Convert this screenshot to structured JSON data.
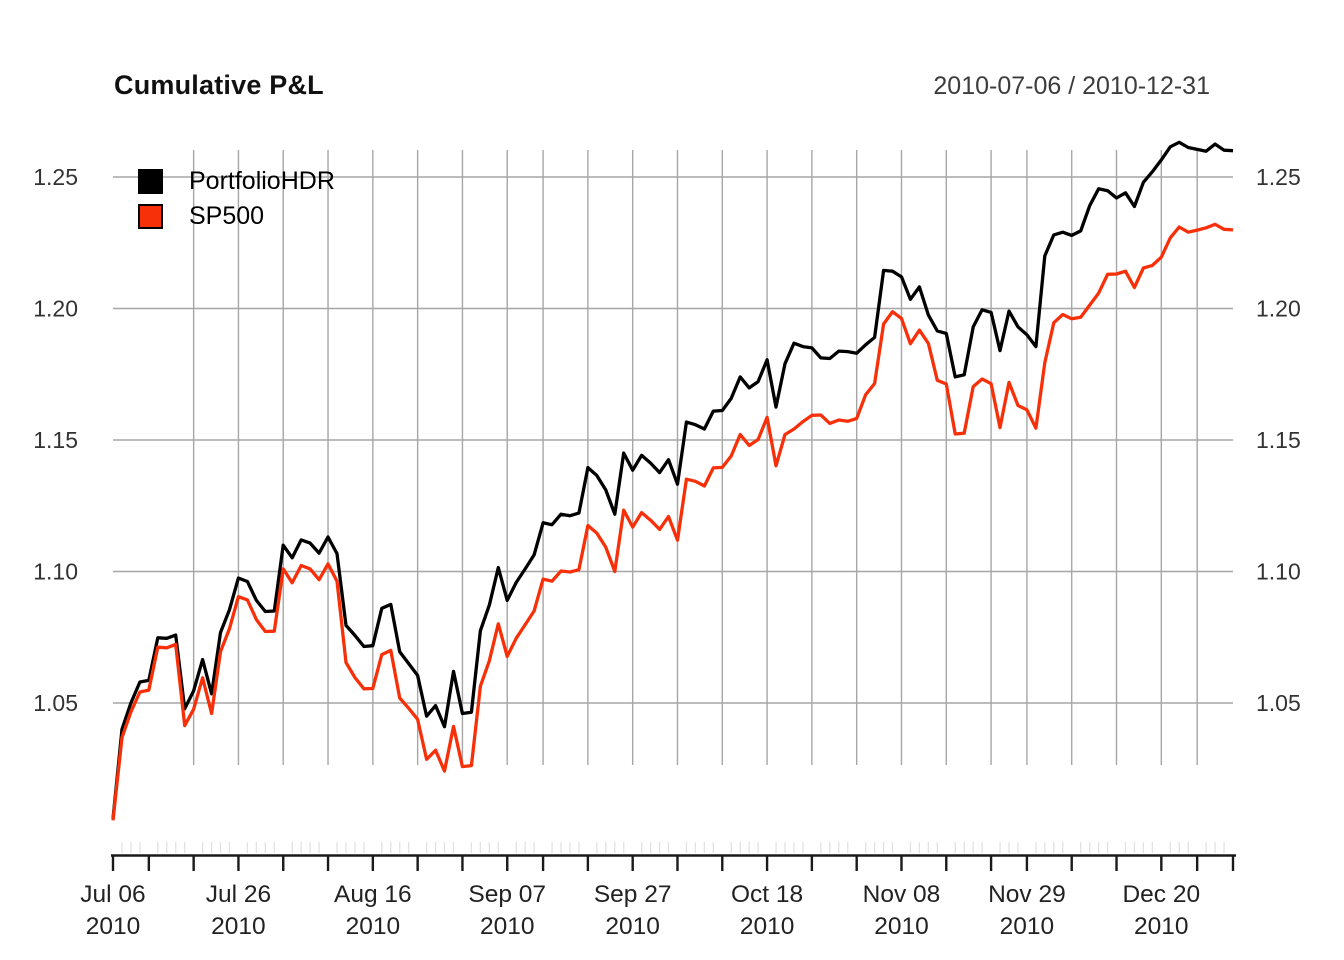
{
  "header": {
    "title": "Cumulative P&L",
    "date_range": "2010-07-06 / 2010-12-31"
  },
  "legend": [
    {
      "label": "PortfolioHDR",
      "color": "#000000"
    },
    {
      "label": "SP500",
      "color": "#F83009"
    }
  ],
  "colors": {
    "background": "#ffffff",
    "gridline": "#A6A6A6",
    "minor_tick": "#E2E2E2",
    "axis": "#1a1a1a",
    "tick_label": "#333333",
    "series_portfolio": "#000000",
    "series_sp500": "#F83009"
  },
  "chart_data": {
    "type": "line",
    "title": "Cumulative P&L",
    "subtitle_right": "2010-07-06 / 2010-12-31",
    "xlabel": "",
    "ylabel": "",
    "grid": true,
    "legend_position": "top-left",
    "ylim": [
      1.0,
      1.268
    ],
    "yticks": [
      1.05,
      1.1,
      1.15,
      1.2,
      1.25
    ],
    "ytick_labels": [
      "1.05",
      "1.10",
      "1.15",
      "1.20",
      "1.25"
    ],
    "x": [
      "2010-07-06",
      "2010-07-07",
      "2010-07-08",
      "2010-07-09",
      "2010-07-12",
      "2010-07-13",
      "2010-07-14",
      "2010-07-15",
      "2010-07-16",
      "2010-07-19",
      "2010-07-20",
      "2010-07-21",
      "2010-07-22",
      "2010-07-23",
      "2010-07-26",
      "2010-07-27",
      "2010-07-28",
      "2010-07-29",
      "2010-07-30",
      "2010-08-02",
      "2010-08-03",
      "2010-08-04",
      "2010-08-05",
      "2010-08-06",
      "2010-08-09",
      "2010-08-10",
      "2010-08-11",
      "2010-08-12",
      "2010-08-13",
      "2010-08-16",
      "2010-08-17",
      "2010-08-18",
      "2010-08-19",
      "2010-08-20",
      "2010-08-23",
      "2010-08-24",
      "2010-08-25",
      "2010-08-26",
      "2010-08-27",
      "2010-08-30",
      "2010-08-31",
      "2010-09-01",
      "2010-09-02",
      "2010-09-03",
      "2010-09-07",
      "2010-09-08",
      "2010-09-09",
      "2010-09-10",
      "2010-09-13",
      "2010-09-14",
      "2010-09-15",
      "2010-09-16",
      "2010-09-17",
      "2010-09-20",
      "2010-09-21",
      "2010-09-22",
      "2010-09-23",
      "2010-09-24",
      "2010-09-27",
      "2010-09-28",
      "2010-09-29",
      "2010-09-30",
      "2010-10-01",
      "2010-10-04",
      "2010-10-05",
      "2010-10-06",
      "2010-10-07",
      "2010-10-08",
      "2010-10-11",
      "2010-10-12",
      "2010-10-13",
      "2010-10-14",
      "2010-10-15",
      "2010-10-18",
      "2010-10-19",
      "2010-10-20",
      "2010-10-21",
      "2010-10-22",
      "2010-10-25",
      "2010-10-26",
      "2010-10-27",
      "2010-10-28",
      "2010-10-29",
      "2010-11-01",
      "2010-11-02",
      "2010-11-03",
      "2010-11-04",
      "2010-11-05",
      "2010-11-08",
      "2010-11-09",
      "2010-11-10",
      "2010-11-11",
      "2010-11-12",
      "2010-11-15",
      "2010-11-16",
      "2010-11-17",
      "2010-11-18",
      "2010-11-19",
      "2010-11-22",
      "2010-11-23",
      "2010-11-24",
      "2010-11-26",
      "2010-11-29",
      "2010-11-30",
      "2010-12-01",
      "2010-12-02",
      "2010-12-03",
      "2010-12-06",
      "2010-12-07",
      "2010-12-08",
      "2010-12-09",
      "2010-12-10",
      "2010-12-13",
      "2010-12-14",
      "2010-12-15",
      "2010-12-16",
      "2010-12-17",
      "2010-12-20",
      "2010-12-21",
      "2010-12-22",
      "2010-12-23",
      "2010-12-27",
      "2010-12-28",
      "2010-12-29",
      "2010-12-30",
      "2010-12-31"
    ],
    "series": [
      {
        "name": "PortfolioHDR",
        "color": "#000000",
        "values": [
          1.006,
          1.04,
          1.05,
          1.058,
          1.0586,
          1.0748,
          1.0746,
          1.0758,
          1.0478,
          1.0546,
          1.0665,
          1.0535,
          1.0768,
          1.0855,
          1.0975,
          1.0962,
          1.089,
          1.0848,
          1.085,
          1.11,
          1.1052,
          1.112,
          1.1108,
          1.107,
          1.1131,
          1.1068,
          1.0795,
          1.0757,
          1.0715,
          1.0718,
          1.086,
          1.0875,
          1.0695,
          1.065,
          1.0605,
          1.045,
          1.049,
          1.041,
          1.062,
          1.046,
          1.0465,
          1.0775,
          1.0872,
          1.1015,
          1.089,
          1.0958,
          1.101,
          1.1063,
          1.1185,
          1.1178,
          1.1218,
          1.1212,
          1.1222,
          1.1395,
          1.1365,
          1.131,
          1.1218,
          1.145,
          1.1385,
          1.1442,
          1.1412,
          1.1376,
          1.1425,
          1.1332,
          1.1568,
          1.1558,
          1.1542,
          1.161,
          1.1612,
          1.1658,
          1.174,
          1.1698,
          1.1722,
          1.1805,
          1.1625,
          1.179,
          1.1868,
          1.1855,
          1.185,
          1.1812,
          1.181,
          1.1838,
          1.1836,
          1.183,
          1.1862,
          1.189,
          1.2145,
          1.2142,
          1.212,
          1.2035,
          1.2082,
          1.1975,
          1.1915,
          1.1905,
          1.174,
          1.1748,
          1.193,
          1.1995,
          1.1985,
          1.184,
          1.199,
          1.193,
          1.19,
          1.1855,
          1.22,
          1.228,
          1.229,
          1.2278,
          1.2295,
          1.239,
          1.2455,
          1.2448,
          1.242,
          1.244,
          1.2388,
          1.248,
          1.252,
          1.2565,
          1.2615,
          1.2632,
          1.2612,
          1.2605,
          1.2598,
          1.2625,
          1.2602,
          1.26
        ]
      },
      {
        "name": "SP500",
        "color": "#F83009",
        "values": [
          1.0054,
          1.0369,
          1.0466,
          1.0542,
          1.0549,
          1.0712,
          1.071,
          1.0723,
          1.0414,
          1.0476,
          1.0596,
          1.046,
          1.0695,
          1.0783,
          1.0904,
          1.0892,
          1.0817,
          1.0772,
          1.0773,
          1.101,
          1.0957,
          1.1023,
          1.101,
          1.0969,
          1.1029,
          1.0963,
          1.0654,
          1.0597,
          1.0554,
          1.0555,
          1.0684,
          1.07,
          1.0519,
          1.048,
          1.0438,
          1.0286,
          1.032,
          1.0241,
          1.0411,
          1.0258,
          1.0262,
          1.0564,
          1.066,
          1.0801,
          1.0677,
          1.0746,
          1.0798,
          1.085,
          1.0971,
          1.0963,
          1.1002,
          1.0998,
          1.1007,
          1.1175,
          1.1146,
          1.1092,
          1.1,
          1.1233,
          1.1169,
          1.1224,
          1.1195,
          1.116,
          1.1209,
          1.1119,
          1.1351,
          1.1343,
          1.1325,
          1.1394,
          1.1396,
          1.1439,
          1.1521,
          1.1479,
          1.1502,
          1.1586,
          1.1402,
          1.1521,
          1.1542,
          1.157,
          1.1594,
          1.1595,
          1.1563,
          1.1576,
          1.1571,
          1.1582,
          1.1672,
          1.1715,
          1.1941,
          1.1988,
          1.1962,
          1.1866,
          1.1918,
          1.1867,
          1.1727,
          1.1713,
          1.1523,
          1.1526,
          1.1703,
          1.1732,
          1.1714,
          1.1547,
          1.1719,
          1.1631,
          1.1615,
          1.1545,
          1.1794,
          1.1946,
          1.1977,
          1.1961,
          1.1967,
          1.2012,
          1.2058,
          1.213,
          1.2131,
          1.2142,
          1.208,
          1.2154,
          1.2164,
          1.2195,
          1.2269,
          1.231,
          1.229,
          1.2298,
          1.2307,
          1.232,
          1.2301,
          1.2299
        ]
      }
    ],
    "xtick_labels": [
      {
        "index": 0,
        "line1": "Jul 06",
        "line2": "2010"
      },
      {
        "index": 14,
        "line1": "Jul 26",
        "line2": "2010"
      },
      {
        "index": 29,
        "line1": "Aug 16",
        "line2": "2010"
      },
      {
        "index": 44,
        "line1": "Sep 07",
        "line2": "2010"
      },
      {
        "index": 58,
        "line1": "Sep 27",
        "line2": "2010"
      },
      {
        "index": 73,
        "line1": "Oct 18",
        "line2": "2010"
      },
      {
        "index": 88,
        "line1": "Nov 08",
        "line2": "2010"
      },
      {
        "index": 102,
        "line1": "Nov 29",
        "line2": "2010"
      },
      {
        "index": 117,
        "line1": "Dec 20",
        "line2": "2010"
      }
    ],
    "vgrid_indices": [
      9,
      14,
      19,
      24,
      29,
      34,
      39,
      44,
      48,
      53,
      58,
      63,
      68,
      73,
      78,
      83,
      88,
      93,
      98,
      102,
      107,
      112,
      117,
      121
    ],
    "major_tick_indices": [
      0,
      4,
      9,
      14,
      19,
      24,
      29,
      34,
      39,
      44,
      48,
      53,
      58,
      63,
      68,
      73,
      78,
      83,
      88,
      93,
      98,
      102,
      107,
      112,
      117,
      121,
      125
    ]
  }
}
